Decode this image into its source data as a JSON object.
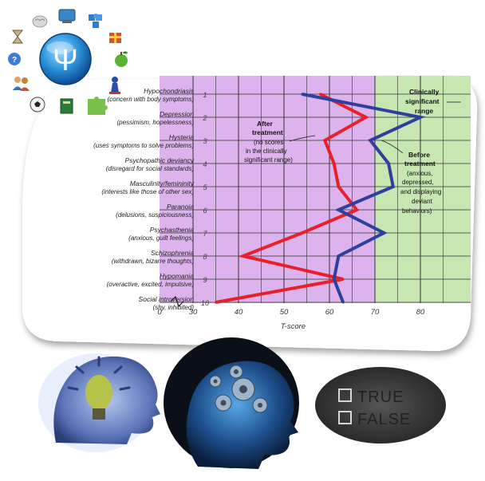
{
  "chart_data": {
    "type": "line",
    "categories": [
      {
        "num": "1",
        "name": "Hypochondriasis",
        "desc": "(concern with body symptoms)"
      },
      {
        "num": "2",
        "name": "Depression",
        "desc": "(pessimism, hopelessness)"
      },
      {
        "num": "3",
        "name": "Hysteria",
        "desc": "(uses symptoms to solve problems)"
      },
      {
        "num": "4",
        "name": "Psychopathic deviancy",
        "desc": "(disregard for social standards)"
      },
      {
        "num": "5",
        "name": "Masculinity/femininity",
        "desc": "(interests like those of other sex)"
      },
      {
        "num": "6",
        "name": "Paranoia",
        "desc": "(delusions, suspiciousness)"
      },
      {
        "num": "7",
        "name": "Psychasthenia",
        "desc": "(anxious, guilt feelings)"
      },
      {
        "num": "8",
        "name": "Schizophrenia",
        "desc": "(withdrawn, bizarre thoughts)"
      },
      {
        "num": "9",
        "name": "Hypomania",
        "desc": "(overactive, excited, impulsive)"
      },
      {
        "num": "10",
        "name": "Social introversion",
        "desc": "(shy, inhibited)"
      }
    ],
    "series": [
      {
        "values": [
          58,
          68,
          59,
          61,
          62,
          66,
          54,
          41,
          63,
          35
        ],
        "color": "#e8202a"
      },
      {
        "values": [
          54,
          80,
          69,
          73,
          74,
          62,
          72,
          62,
          61,
          63
        ],
        "color": "#2f3f9e"
      }
    ],
    "xlabel": "T-score",
    "xticks": [
      "0",
      "30",
      "40",
      "50",
      "60",
      "70",
      "80"
    ],
    "xlim": [
      30,
      85
    ],
    "clinical_threshold": 70,
    "grid": true
  },
  "annotations": {
    "after": {
      "title": [
        "After",
        "treatment"
      ],
      "body": [
        "(no scores",
        "in the clinically",
        "significant range)"
      ]
    },
    "before": {
      "title": [
        "Before",
        "treatment"
      ],
      "body": [
        "(anxious,",
        "depressed,",
        "and displaying",
        "deviant",
        "behaviors)"
      ]
    },
    "clinical": [
      "Clinically",
      "significant",
      "range"
    ]
  },
  "checklist": [
    "TRUE",
    "FALSE"
  ],
  "colors": {
    "normal_range": "#dcb3ec",
    "clinical_range": "#c6e6b2",
    "grid": "#333333",
    "accent_blue": "#1f8fd6"
  },
  "icons": [
    "psi-icon",
    "brain-icon",
    "monitor-icon",
    "puzzle-icon",
    "gift-icon",
    "apple-icon",
    "chess-icon",
    "puzzle-piece-icon",
    "book-icon",
    "soccer-ball-icon",
    "people-icon",
    "question-person-icon",
    "hourglass-icon",
    "lightbulb-head-icon",
    "gear-head-icon",
    "checkbox-icon"
  ]
}
